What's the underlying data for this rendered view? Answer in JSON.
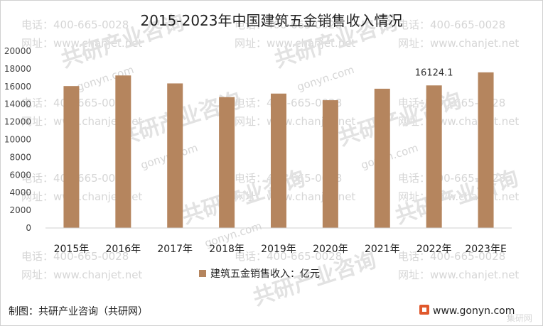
{
  "chart_data": {
    "type": "bar",
    "title": "2015-2023年中国建筑五金销售收入情况",
    "categories": [
      "2015年",
      "2016年",
      "2017年",
      "2018年",
      "2019年",
      "2020年",
      "2021年",
      "2022年",
      "2023年E"
    ],
    "series": [
      {
        "name": "建筑五金销售收入：亿元",
        "values": [
          16050,
          17250,
          16350,
          14800,
          15200,
          14450,
          15750,
          16124.1,
          17600
        ],
        "color": "#b5855e"
      }
    ],
    "data_labels": [
      {
        "category": "2022年",
        "text": "16124.1"
      }
    ],
    "ylim": [
      0,
      20000
    ],
    "yticks": [
      "0",
      "2000",
      "4000",
      "6000",
      "8000",
      "10000",
      "12000",
      "14000",
      "16000",
      "18000",
      "20000"
    ],
    "grid": false,
    "legend_position": "bottom"
  },
  "footer": {
    "source": "制图：共研产业咨询（共研网）",
    "website": "www.gonyn.com",
    "corner_logo": "集研网"
  },
  "watermark": {
    "phone": "电话：400-665-0028",
    "site": "网址：www.chanjet.net",
    "brand": "共研产业咨询",
    "url": "gonyn.com"
  },
  "colors": {
    "bar": "#b5855e",
    "logo": "#e0582c"
  }
}
